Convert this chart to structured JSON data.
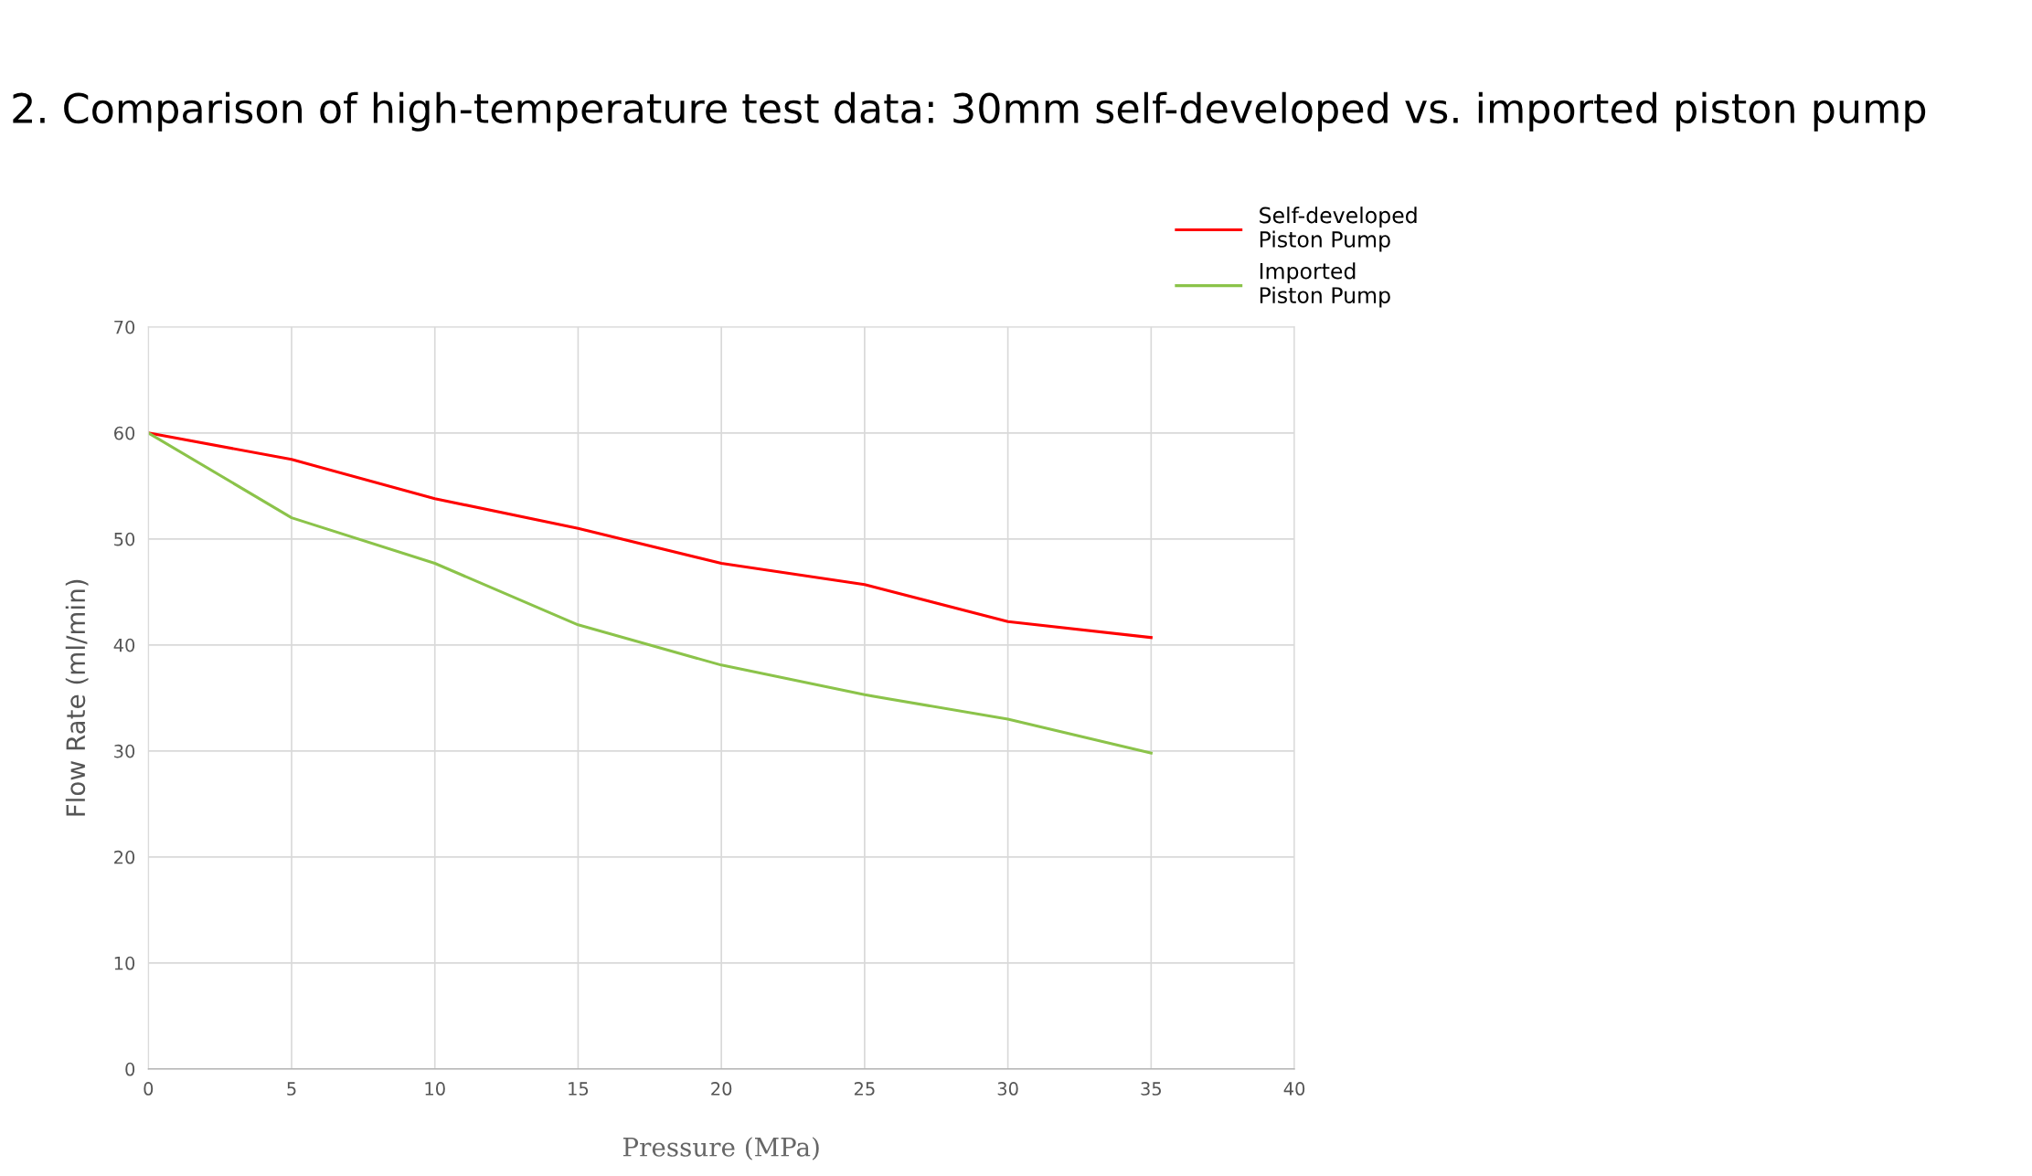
{
  "chart_data": {
    "type": "line",
    "title": "2. Comparison of high-temperature test data: 30mm self-developed vs. imported piston pump",
    "xlabel": "Pressure (MPa)",
    "ylabel": "Flow Rate (ml/min)",
    "x": [
      0,
      5,
      10,
      15,
      20,
      25,
      30,
      35
    ],
    "series": [
      {
        "name": "Self-developed\nPiston Pump",
        "color": "#ff0000",
        "values": [
          60,
          57.5,
          53.8,
          51.0,
          47.7,
          45.7,
          42.2,
          40.7
        ]
      },
      {
        "name": "Imported\nPiston Pump",
        "color": "#8bc34a",
        "values": [
          60,
          52.0,
          47.7,
          41.9,
          38.1,
          35.3,
          33.0,
          29.8
        ]
      }
    ],
    "xlim": [
      0,
      40
    ],
    "xticks": [
      0,
      5,
      10,
      15,
      20,
      25,
      30,
      35,
      40
    ],
    "ylim": [
      0,
      70
    ],
    "yticks": [
      0,
      10,
      20,
      30,
      40,
      50,
      60,
      70
    ],
    "grid": true,
    "legend": "top right",
    "marker": "none",
    "line_style": "solid"
  }
}
